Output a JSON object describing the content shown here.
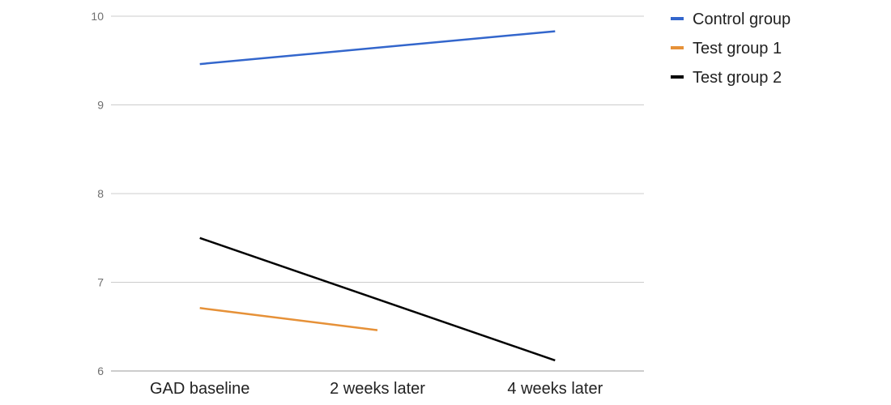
{
  "chart_data": {
    "type": "line",
    "title": "",
    "xlabel": "",
    "ylabel": "",
    "categories": [
      "GAD baseline",
      "2 weeks later",
      "4 weeks later"
    ],
    "ylim": [
      6,
      10
    ],
    "yticks": [
      6,
      7,
      8,
      9,
      10
    ],
    "grid": true,
    "legend_position": "right",
    "series": [
      {
        "name": "Control group",
        "color": "#3366cc",
        "values": [
          9.46,
          null,
          9.83
        ]
      },
      {
        "name": "Test group 1",
        "color": "#e69138",
        "values": [
          6.71,
          6.46,
          null
        ]
      },
      {
        "name": "Test group 2",
        "color": "#000000",
        "values": [
          7.5,
          null,
          6.12
        ]
      }
    ]
  }
}
